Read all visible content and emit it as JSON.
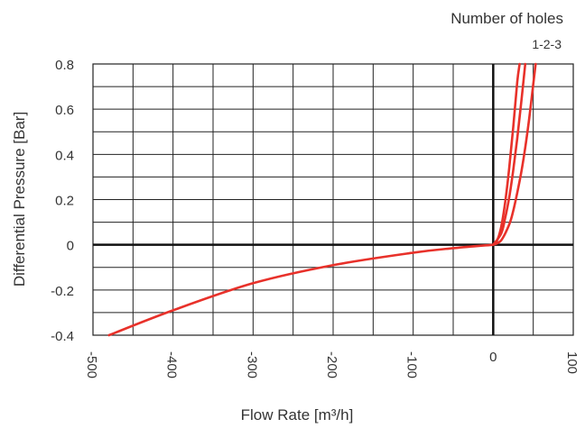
{
  "chart_data": {
    "type": "line",
    "title": "",
    "xlabel": "Flow Rate [m³/h]",
    "ylabel": "Differential Pressure [Bar]",
    "xlim": [
      -500,
      100
    ],
    "ylim": [
      -0.4,
      0.8
    ],
    "grid": true,
    "x_ticks": [
      -500,
      -400,
      -300,
      -200,
      -100,
      0,
      100
    ],
    "x_tick_labels": [
      "-500",
      "-400",
      "-300",
      "-200",
      "-100",
      "0",
      "100"
    ],
    "y_ticks": [
      0.8,
      0.6,
      0.4,
      0.2,
      0,
      -0.2,
      -0.4
    ],
    "y_tick_labels": [
      "0.8",
      "0.6",
      "0.4",
      "0.2",
      "0",
      "-0.2",
      "-0.4"
    ],
    "legend": {
      "title": "Number of holes",
      "entries": "1-2-3",
      "placement": "top-right"
    },
    "series": [
      {
        "name": "1",
        "color": "#e8312a",
        "x": [
          0,
          5,
          10,
          15,
          20,
          25,
          30,
          33
        ],
        "y": [
          0,
          0.02,
          0.08,
          0.19,
          0.34,
          0.52,
          0.72,
          0.8
        ]
      },
      {
        "name": "2",
        "color": "#e8312a",
        "x": [
          0,
          10,
          15,
          20,
          25,
          30,
          35,
          40
        ],
        "y": [
          0,
          0.05,
          0.12,
          0.21,
          0.33,
          0.47,
          0.63,
          0.8
        ]
      },
      {
        "name": "3",
        "color": "#e8312a",
        "x": [
          0,
          10,
          20,
          25,
          30,
          35,
          40,
          45,
          50,
          53
        ],
        "y": [
          0,
          0.02,
          0.09,
          0.15,
          0.23,
          0.32,
          0.43,
          0.56,
          0.71,
          0.8
        ]
      },
      {
        "name": "",
        "color": "#e8312a",
        "x": [
          -480,
          -400,
          -300,
          -200,
          -100,
          -50,
          0
        ],
        "y": [
          -0.4,
          -0.29,
          -0.17,
          -0.09,
          -0.035,
          -0.015,
          0
        ]
      }
    ]
  }
}
